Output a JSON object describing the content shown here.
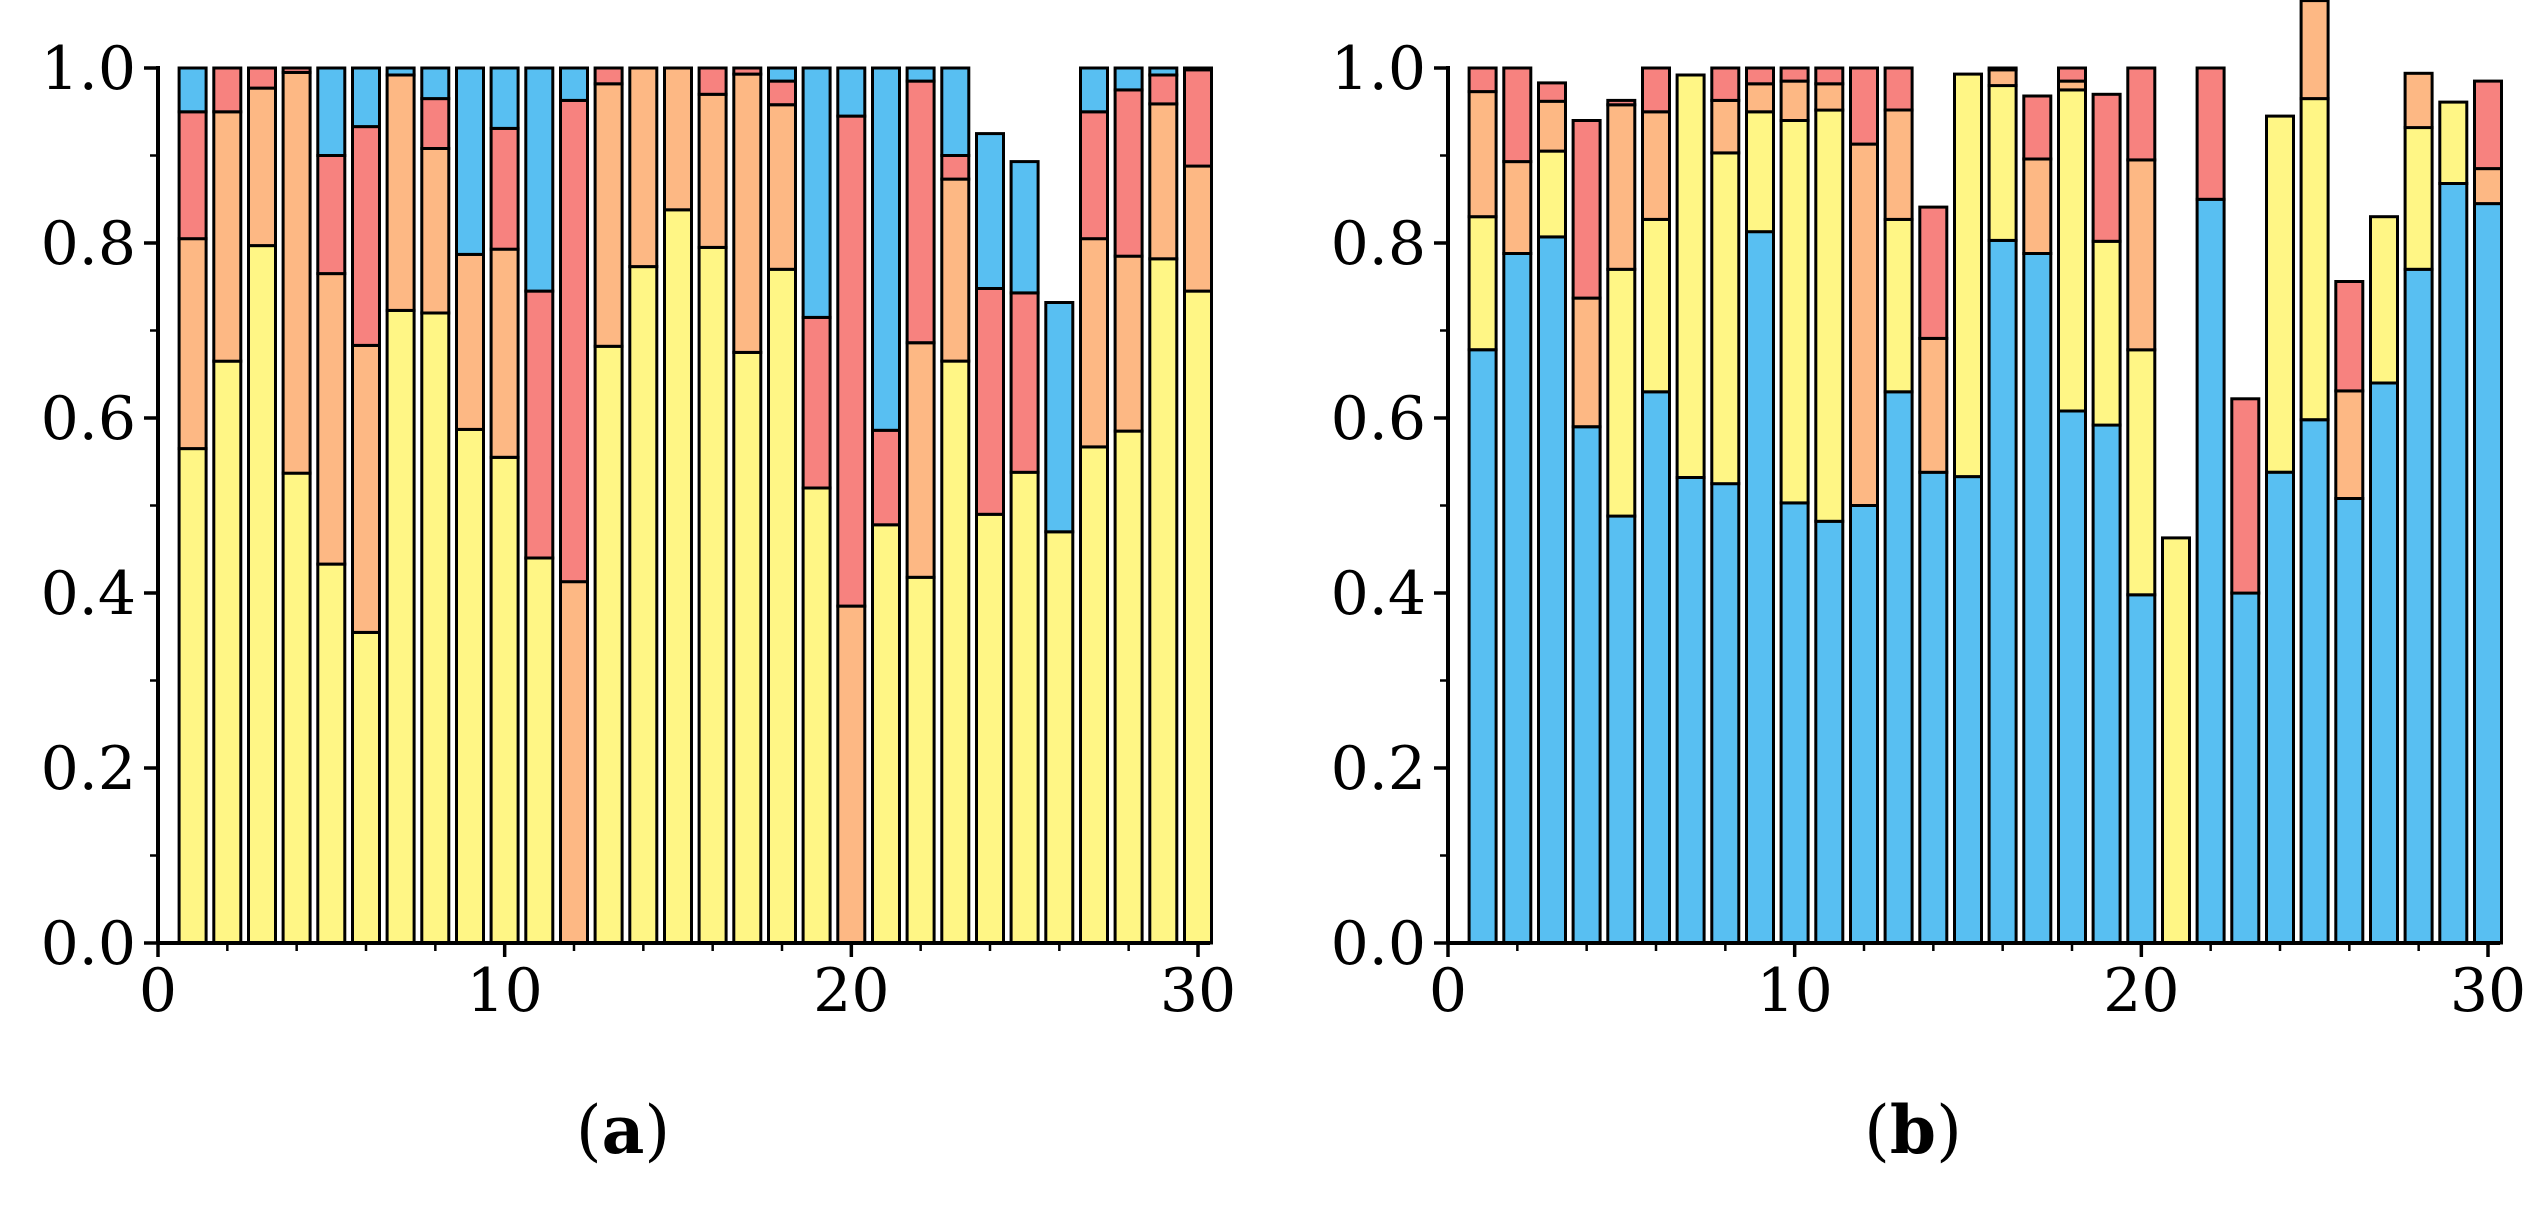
{
  "colors": {
    "yellow": "#FFF685",
    "orange": "#FDB884",
    "red": "#F7827F",
    "blue": "#58BFF2",
    "outline": "#000000"
  },
  "chart_data": [
    {
      "type": "bar",
      "stacked": true,
      "panel": "a",
      "x": [
        1,
        2,
        3,
        4,
        5,
        6,
        7,
        8,
        9,
        10,
        11,
        12,
        13,
        14,
        15,
        16,
        17,
        18,
        19,
        20,
        21,
        22,
        23,
        24,
        25,
        26,
        27,
        28,
        29,
        30
      ],
      "xlim": [
        0,
        30
      ],
      "ylim": [
        0,
        1
      ],
      "xticks": [
        "0",
        "10",
        "20",
        "30"
      ],
      "yticks": [
        "0.0",
        "0.2",
        "0.4",
        "0.6",
        "0.8",
        "1.0"
      ],
      "grid": false,
      "stack_order_bottom_to_top": [
        "yellow",
        "orange",
        "red",
        "blue"
      ],
      "series": [
        {
          "color": "yellow",
          "values": [
            0.565,
            0.665,
            0.797,
            0.537,
            0.433,
            0.355,
            0.723,
            0.72,
            0.587,
            0.555,
            0.44,
            0.0,
            0.682,
            0.773,
            0.838,
            0.795,
            0.675,
            0.77,
            0.52,
            0.0,
            0.478,
            0.418,
            0.665,
            0.49,
            0.538,
            0.47,
            0.567,
            0.585,
            0.782,
            0.745
          ]
        },
        {
          "color": "orange",
          "values": [
            0.24,
            0.285,
            0.18,
            0.458,
            0.332,
            0.328,
            0.269,
            0.188,
            0.2,
            0.238,
            0.0,
            0.413,
            0.3,
            0.227,
            0.162,
            0.175,
            0.318,
            0.188,
            0.0,
            0.385,
            0.0,
            0.268,
            0.208,
            0.0,
            0.0,
            0.0,
            0.238,
            0.2,
            0.177,
            0.143
          ]
        },
        {
          "color": "red",
          "values": [
            0.145,
            0.05,
            0.023,
            0.005,
            0.135,
            0.25,
            0.0,
            0.057,
            0.0,
            0.138,
            0.305,
            0.55,
            0.018,
            0.0,
            0.0,
            0.03,
            0.007,
            0.027,
            0.195,
            0.56,
            0.108,
            0.299,
            0.027,
            0.258,
            0.205,
            0.0,
            0.145,
            0.19,
            0.033,
            0.11
          ]
        },
        {
          "color": "blue",
          "values": [
            0.05,
            0.0,
            0.0,
            0.0,
            0.1,
            0.067,
            0.008,
            0.035,
            0.213,
            0.069,
            0.255,
            0.037,
            0.0,
            0.0,
            0.0,
            0.0,
            0.0,
            0.015,
            0.285,
            0.055,
            0.414,
            0.015,
            0.1,
            0.177,
            0.15,
            0.262,
            0.05,
            0.025,
            0.008,
            0.002
          ]
        }
      ]
    },
    {
      "type": "bar",
      "stacked": true,
      "panel": "b",
      "x": [
        1,
        2,
        3,
        4,
        5,
        6,
        7,
        8,
        9,
        10,
        11,
        12,
        13,
        14,
        15,
        16,
        17,
        18,
        19,
        20,
        21,
        22,
        23,
        24,
        25,
        26,
        27,
        28,
        29,
        30
      ],
      "xlim": [
        0,
        30
      ],
      "ylim": [
        0,
        1
      ],
      "xticks": [
        "0",
        "10",
        "20",
        "30"
      ],
      "yticks": [
        "0.0",
        "0.2",
        "0.4",
        "0.6",
        "0.8",
        "1.0"
      ],
      "grid": false,
      "stack_order_bottom_to_top": [
        "blue",
        "yellow",
        "orange",
        "red"
      ],
      "series": [
        {
          "color": "blue",
          "values": [
            0.678,
            0.788,
            0.807,
            0.59,
            0.488,
            0.63,
            0.532,
            0.525,
            0.813,
            0.503,
            0.482,
            0.5,
            0.63,
            0.538,
            0.533,
            0.803,
            0.788,
            0.608,
            0.592,
            0.398,
            0.0,
            0.85,
            0.4,
            0.538,
            0.598,
            0.508,
            0.64,
            0.77,
            0.868,
            0.845
          ]
        },
        {
          "color": "yellow",
          "values": [
            0.152,
            0.0,
            0.098,
            0.0,
            0.282,
            0.197,
            0.46,
            0.378,
            0.137,
            0.437,
            0.47,
            0.0,
            0.197,
            0.0,
            0.46,
            0.177,
            0.0,
            0.367,
            0.21,
            0.28,
            0.463,
            0.0,
            0.0,
            0.407,
            0.367,
            0.0,
            0.19,
            0.162,
            0.093,
            0.0
          ]
        },
        {
          "color": "orange",
          "values": [
            0.143,
            0.105,
            0.057,
            0.147,
            0.188,
            0.123,
            0.0,
            0.06,
            0.032,
            0.045,
            0.03,
            0.413,
            0.125,
            0.153,
            0.0,
            0.018,
            0.108,
            0.01,
            0.0,
            0.217,
            0.0,
            0.0,
            0.0,
            0.0,
            0.112,
            0.123,
            0.0,
            0.062,
            0.0,
            0.04
          ]
        },
        {
          "color": "red",
          "values": [
            0.027,
            0.107,
            0.021,
            0.203,
            0.005,
            0.05,
            0.0,
            0.037,
            0.018,
            0.015,
            0.018,
            0.087,
            0.048,
            0.15,
            0.0,
            0.002,
            0.072,
            0.015,
            0.168,
            0.105,
            0.0,
            0.15,
            0.222,
            0.0,
            0.0,
            0.125,
            0.0,
            0.0,
            0.0,
            0.1
          ]
        }
      ]
    }
  ],
  "panels": {
    "a": {
      "open": "(",
      "letter": "a",
      "close": ")"
    },
    "b": {
      "open": "(",
      "letter": "b",
      "close": ")"
    }
  }
}
